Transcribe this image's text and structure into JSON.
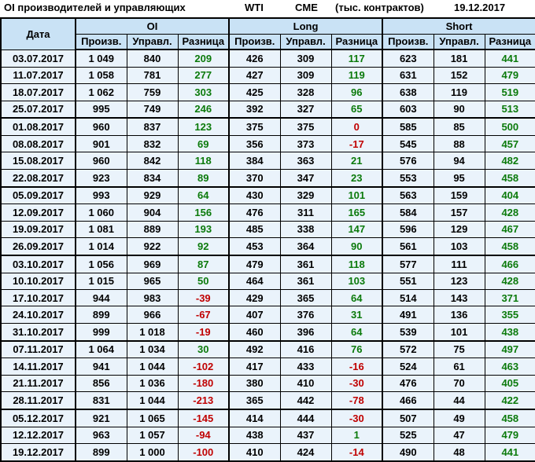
{
  "chart_data": {
    "type": "table",
    "title": "OI производителей и управляющих",
    "instrument": "WTI",
    "exchange": "CME",
    "units": "(тыс. контрактов)",
    "report_date": "19.12.2017",
    "date_column": "Дата",
    "column_groups": [
      "OI",
      "Long",
      "Short"
    ],
    "sub_columns": [
      "Произв.",
      "Управл.",
      "Разница"
    ],
    "rows": [
      {
        "date": "03.07.2017",
        "values": [
          "1 049",
          "840",
          "209",
          "426",
          "309",
          "117",
          "623",
          "181",
          "441"
        ]
      },
      {
        "date": "11.07.2017",
        "values": [
          "1 058",
          "781",
          "277",
          "427",
          "309",
          "119",
          "631",
          "152",
          "479"
        ]
      },
      {
        "date": "18.07.2017",
        "values": [
          "1 062",
          "759",
          "303",
          "425",
          "328",
          "96",
          "638",
          "119",
          "519"
        ]
      },
      {
        "date": "25.07.2017",
        "values": [
          "995",
          "749",
          "246",
          "392",
          "327",
          "65",
          "603",
          "90",
          "513"
        ]
      },
      {
        "date": "01.08.2017",
        "values": [
          "960",
          "837",
          "123",
          "375",
          "375",
          "0",
          "585",
          "85",
          "500"
        ]
      },
      {
        "date": "08.08.2017",
        "values": [
          "901",
          "832",
          "69",
          "356",
          "373",
          "-17",
          "545",
          "88",
          "457"
        ]
      },
      {
        "date": "15.08.2017",
        "values": [
          "960",
          "842",
          "118",
          "384",
          "363",
          "21",
          "576",
          "94",
          "482"
        ]
      },
      {
        "date": "22.08.2017",
        "values": [
          "923",
          "834",
          "89",
          "370",
          "347",
          "23",
          "553",
          "95",
          "458"
        ]
      },
      {
        "date": "05.09.2017",
        "values": [
          "993",
          "929",
          "64",
          "430",
          "329",
          "101",
          "563",
          "159",
          "404"
        ]
      },
      {
        "date": "12.09.2017",
        "values": [
          "1 060",
          "904",
          "156",
          "476",
          "311",
          "165",
          "584",
          "157",
          "428"
        ]
      },
      {
        "date": "19.09.2017",
        "values": [
          "1 081",
          "889",
          "193",
          "485",
          "338",
          "147",
          "596",
          "129",
          "467"
        ]
      },
      {
        "date": "26.09.2017",
        "values": [
          "1 014",
          "922",
          "92",
          "453",
          "364",
          "90",
          "561",
          "103",
          "458"
        ]
      },
      {
        "date": "03.10.2017",
        "values": [
          "1 056",
          "969",
          "87",
          "479",
          "361",
          "118",
          "577",
          "111",
          "466"
        ]
      },
      {
        "date": "10.10.2017",
        "values": [
          "1 015",
          "965",
          "50",
          "464",
          "361",
          "103",
          "551",
          "123",
          "428"
        ]
      },
      {
        "date": "17.10.2017",
        "values": [
          "944",
          "983",
          "-39",
          "429",
          "365",
          "64",
          "514",
          "143",
          "371"
        ]
      },
      {
        "date": "24.10.2017",
        "values": [
          "899",
          "966",
          "-67",
          "407",
          "376",
          "31",
          "491",
          "136",
          "355"
        ]
      },
      {
        "date": "31.10.2017",
        "values": [
          "999",
          "1 018",
          "-19",
          "460",
          "396",
          "64",
          "539",
          "101",
          "438"
        ]
      },
      {
        "date": "07.11.2017",
        "values": [
          "1 064",
          "1 034",
          "30",
          "492",
          "416",
          "76",
          "572",
          "75",
          "497"
        ]
      },
      {
        "date": "14.11.2017",
        "values": [
          "941",
          "1 044",
          "-102",
          "417",
          "433",
          "-16",
          "524",
          "61",
          "463"
        ]
      },
      {
        "date": "21.11.2017",
        "values": [
          "856",
          "1 036",
          "-180",
          "380",
          "410",
          "-30",
          "476",
          "70",
          "405"
        ]
      },
      {
        "date": "28.11.2017",
        "values": [
          "831",
          "1 044",
          "-213",
          "365",
          "442",
          "-78",
          "466",
          "44",
          "422"
        ]
      },
      {
        "date": "05.12.2017",
        "values": [
          "921",
          "1 065",
          "-145",
          "414",
          "444",
          "-30",
          "507",
          "49",
          "458"
        ]
      },
      {
        "date": "12.12.2017",
        "values": [
          "963",
          "1 057",
          "-94",
          "438",
          "437",
          "1",
          "525",
          "47",
          "479"
        ]
      },
      {
        "date": "19.12.2017",
        "values": [
          "899",
          "1 000",
          "-100",
          "410",
          "424",
          "-14",
          "490",
          "48",
          "441"
        ]
      }
    ]
  },
  "colors": {
    "positive_diff": "#0b7a0b",
    "negative_diff": "#c00000",
    "header_fill": "#c9e2f5",
    "cell_fill": "#eaf3fb",
    "grid": "#000000"
  }
}
